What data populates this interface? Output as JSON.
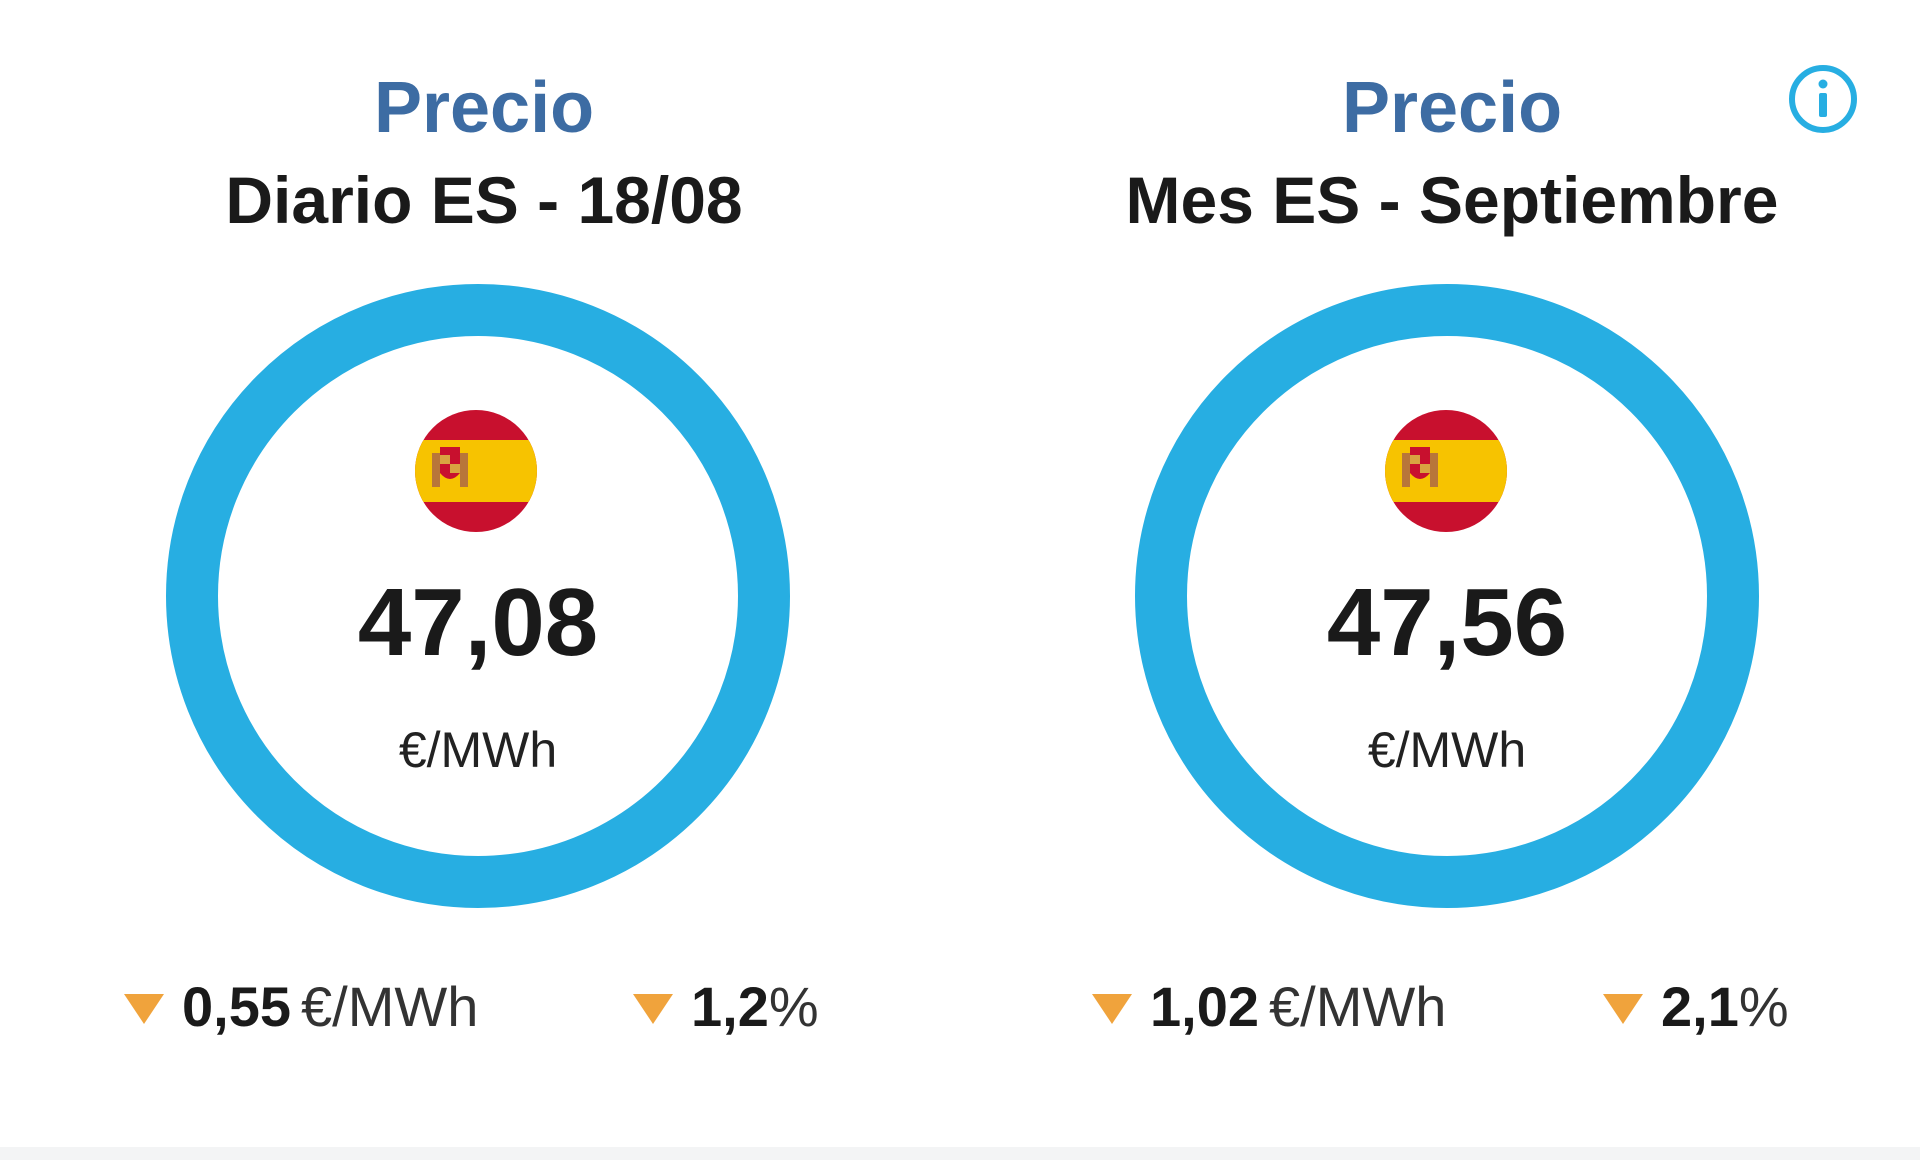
{
  "colors": {
    "title_accent": "#3d6ca3",
    "ring": "#27aee2",
    "arrow_down": "#f0a33c",
    "info_icon": "#27aee2"
  },
  "info": {
    "icon": "info-icon"
  },
  "cards": [
    {
      "title_line1": "Precio",
      "title_line2": "Diario ES - 18/08",
      "flag_icon": "spain-flag-icon",
      "value": "47,08",
      "unit": "€/MWh",
      "change": {
        "direction_icon": "down-arrow-icon",
        "abs_value": "0,55",
        "abs_unit": "€/MWh",
        "pct_value": "1,2",
        "pct_sign": "%"
      }
    },
    {
      "title_line1": "Precio",
      "title_line2": "Mes ES - Septiembre",
      "flag_icon": "spain-flag-icon",
      "value": "47,56",
      "unit": "€/MWh",
      "change": {
        "direction_icon": "down-arrow-icon",
        "abs_value": "1,02",
        "abs_unit": "€/MWh",
        "pct_value": "2,1",
        "pct_sign": "%"
      }
    }
  ]
}
